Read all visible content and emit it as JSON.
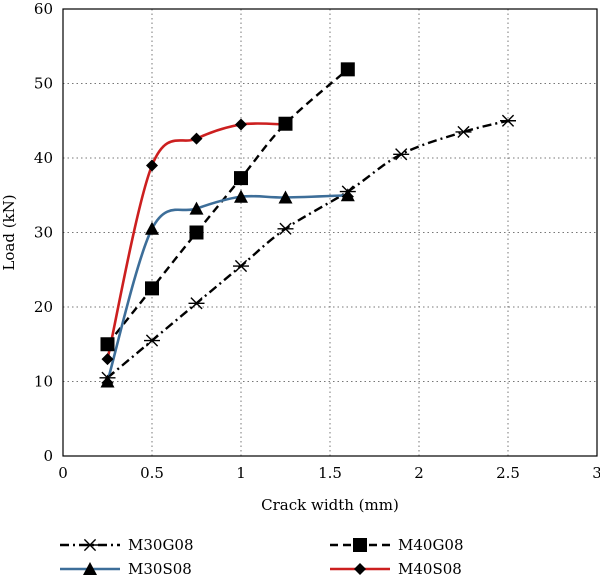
{
  "chart_data": {
    "type": "line",
    "title": "",
    "xlabel": "Crack width (mm)",
    "ylabel": "Load (kN)",
    "xlim": [
      0,
      3
    ],
    "ylim": [
      0,
      60
    ],
    "xticks": [
      "0",
      "0.5",
      "1",
      "1.5",
      "2",
      "2.5",
      "3"
    ],
    "yticks": [
      "0",
      "10",
      "20",
      "30",
      "40",
      "50",
      "60"
    ],
    "grid": true,
    "legend_position": "bottom",
    "series": [
      {
        "name": "M30G08",
        "color": "#000000",
        "line_style": "dash-dot",
        "marker": "asterisk",
        "x": [
          0.25,
          0.5,
          0.75,
          1.0,
          1.25,
          1.6,
          1.9,
          2.25,
          2.5
        ],
        "y": [
          10.5,
          15.5,
          20.5,
          25.5,
          30.5,
          35.5,
          40.5,
          43.5,
          45
        ]
      },
      {
        "name": "M40G08",
        "color": "#000000",
        "line_style": "dashed",
        "marker": "square",
        "x": [
          0.25,
          0.5,
          0.75,
          1.0,
          1.25,
          1.6
        ],
        "y": [
          15,
          22.5,
          30,
          37.3,
          44.6,
          51.9
        ]
      },
      {
        "name": "M30S08",
        "color": "#3d6e99",
        "line_style": "solid",
        "marker": "triangle",
        "x": [
          0.25,
          0.5,
          0.75,
          1.0,
          1.25,
          1.6
        ],
        "y": [
          10,
          30.5,
          33.2,
          34.8,
          34.7,
          35
        ]
      },
      {
        "name": "M40S08",
        "color": "#cc1f1f",
        "line_style": "solid",
        "marker": "diamond",
        "x": [
          0.25,
          0.5,
          0.75,
          1.0,
          1.25
        ],
        "y": [
          13,
          39,
          42.6,
          44.5,
          44.5
        ]
      }
    ]
  }
}
